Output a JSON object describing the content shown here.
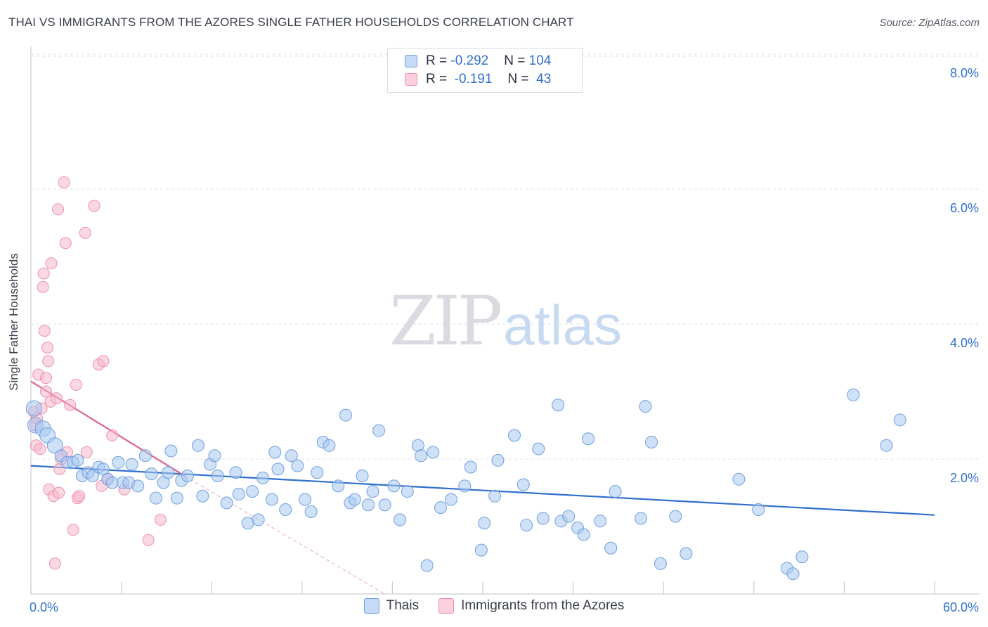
{
  "title": "THAI VS IMMIGRANTS FROM THE AZORES SINGLE FATHER HOUSEHOLDS CORRELATION CHART",
  "source": "Source: ZipAtlas.com",
  "watermark": {
    "zip": "ZIP",
    "atlas": "atlas"
  },
  "legend": {
    "thais": {
      "r_label": "R = ",
      "r_value": "-0.292",
      "n_label": "N = ",
      "n_value": "104"
    },
    "azores": {
      "r_label": "R = ",
      "r_value": " -0.191",
      "n_label": "N = ",
      "n_value": " 43"
    }
  },
  "bottom_legend": {
    "thais": "Thais",
    "azores": "Immigrants from the Azores"
  },
  "colors": {
    "thais_fill": "#a8c8f0",
    "thais_stroke": "#6f9fe0",
    "thais_line": "#2f6fce",
    "azores_fill": "#f6b8cb",
    "azores_stroke": "#ef8fad",
    "azores_line": "#e0608a",
    "axis_text": "#2f6fce",
    "grid": "#dfe2e8"
  },
  "chart_data": {
    "type": "scatter",
    "title": "THAI VS IMMIGRANTS FROM THE AZORES SINGLE FATHER HOUSEHOLDS CORRELATION CHART",
    "xlabel": "",
    "ylabel": "Single Father Households",
    "xlim": [
      0,
      60
    ],
    "ylim": [
      0,
      8.2
    ],
    "x_tick_labels": [
      "0.0%",
      "60.0%"
    ],
    "y_ticks": [
      2,
      4,
      6,
      8
    ],
    "y_tick_labels": [
      "2.0%",
      "4.0%",
      "6.0%",
      "8.0%"
    ],
    "grid": true,
    "series": [
      {
        "name": "Thais",
        "r": -0.292,
        "n": 104,
        "trend": {
          "x": [
            0,
            60
          ],
          "y": [
            1.9,
            1.17
          ]
        },
        "points": [
          [
            0.2,
            2.75
          ],
          [
            0.3,
            2.5
          ],
          [
            0.8,
            2.45
          ],
          [
            1.1,
            2.35
          ],
          [
            1.6,
            2.2
          ],
          [
            2.0,
            2.05
          ],
          [
            2.4,
            1.95
          ],
          [
            2.8,
            1.95
          ],
          [
            3.1,
            1.98
          ],
          [
            3.4,
            1.75
          ],
          [
            3.8,
            1.8
          ],
          [
            4.1,
            1.75
          ],
          [
            4.5,
            1.88
          ],
          [
            4.8,
            1.85
          ],
          [
            5.1,
            1.7
          ],
          [
            5.4,
            1.65
          ],
          [
            5.8,
            1.95
          ],
          [
            6.1,
            1.65
          ],
          [
            6.5,
            1.65
          ],
          [
            6.7,
            1.92
          ],
          [
            7.1,
            1.6
          ],
          [
            7.6,
            2.05
          ],
          [
            8.0,
            1.78
          ],
          [
            8.3,
            1.42
          ],
          [
            8.8,
            1.65
          ],
          [
            9.1,
            1.8
          ],
          [
            9.3,
            2.12
          ],
          [
            9.7,
            1.42
          ],
          [
            10.0,
            1.68
          ],
          [
            10.4,
            1.75
          ],
          [
            11.1,
            2.2
          ],
          [
            11.4,
            1.45
          ],
          [
            11.9,
            1.92
          ],
          [
            12.2,
            2.05
          ],
          [
            12.4,
            1.75
          ],
          [
            13.0,
            1.35
          ],
          [
            13.6,
            1.8
          ],
          [
            13.8,
            1.48
          ],
          [
            14.4,
            1.05
          ],
          [
            14.7,
            1.52
          ],
          [
            15.1,
            1.1
          ],
          [
            15.4,
            1.72
          ],
          [
            16.0,
            1.4
          ],
          [
            16.2,
            2.1
          ],
          [
            16.4,
            1.85
          ],
          [
            16.9,
            1.25
          ],
          [
            17.3,
            2.05
          ],
          [
            17.7,
            1.9
          ],
          [
            18.2,
            1.4
          ],
          [
            18.6,
            1.22
          ],
          [
            19.0,
            1.8
          ],
          [
            19.4,
            2.25
          ],
          [
            19.8,
            2.2
          ],
          [
            20.4,
            1.6
          ],
          [
            20.9,
            2.65
          ],
          [
            21.2,
            1.35
          ],
          [
            21.5,
            1.4
          ],
          [
            22.0,
            1.75
          ],
          [
            22.4,
            1.32
          ],
          [
            22.7,
            1.52
          ],
          [
            23.1,
            2.42
          ],
          [
            23.5,
            1.32
          ],
          [
            24.1,
            1.6
          ],
          [
            24.5,
            1.1
          ],
          [
            25.0,
            1.52
          ],
          [
            25.7,
            2.2
          ],
          [
            25.9,
            2.05
          ],
          [
            26.3,
            0.42
          ],
          [
            26.7,
            2.1
          ],
          [
            27.2,
            1.28
          ],
          [
            27.9,
            1.4
          ],
          [
            28.8,
            1.6
          ],
          [
            29.2,
            1.88
          ],
          [
            29.9,
            0.65
          ],
          [
            30.1,
            1.05
          ],
          [
            30.8,
            1.45
          ],
          [
            31.0,
            1.98
          ],
          [
            32.1,
            2.35
          ],
          [
            32.7,
            1.62
          ],
          [
            32.9,
            1.02
          ],
          [
            33.7,
            2.15
          ],
          [
            34.0,
            1.12
          ],
          [
            35.0,
            2.8
          ],
          [
            35.2,
            1.08
          ],
          [
            35.7,
            1.15
          ],
          [
            36.3,
            0.98
          ],
          [
            36.7,
            0.88
          ],
          [
            37.0,
            2.3
          ],
          [
            37.8,
            1.08
          ],
          [
            38.5,
            0.68
          ],
          [
            38.8,
            1.52
          ],
          [
            40.5,
            1.12
          ],
          [
            40.8,
            2.78
          ],
          [
            41.2,
            2.25
          ],
          [
            41.8,
            0.45
          ],
          [
            42.8,
            1.15
          ],
          [
            43.5,
            0.6
          ],
          [
            47.0,
            1.7
          ],
          [
            48.3,
            1.25
          ],
          [
            50.2,
            0.38
          ],
          [
            50.6,
            0.3
          ],
          [
            51.2,
            0.55
          ],
          [
            54.6,
            2.95
          ],
          [
            56.8,
            2.2
          ],
          [
            57.7,
            2.58
          ]
        ]
      },
      {
        "name": "Immigrants from the Azores",
        "r": -0.191,
        "n": 43,
        "trend": {
          "x": [
            0,
            10.2
          ],
          "y": [
            3.15,
            1.75
          ]
        },
        "trend_extension": {
          "x": [
            10.2,
            23.5
          ],
          "y": [
            1.75,
            0.0
          ]
        },
        "points": [
          [
            0.2,
            2.7
          ],
          [
            0.3,
            2.5
          ],
          [
            0.35,
            2.2
          ],
          [
            0.4,
            2.6
          ],
          [
            0.5,
            3.25
          ],
          [
            0.6,
            2.15
          ],
          [
            0.7,
            2.75
          ],
          [
            0.8,
            4.55
          ],
          [
            0.85,
            4.75
          ],
          [
            0.9,
            3.9
          ],
          [
            1.0,
            3.0
          ],
          [
            1.1,
            3.65
          ],
          [
            1.15,
            3.45
          ],
          [
            1.2,
            1.55
          ],
          [
            1.3,
            2.85
          ],
          [
            1.35,
            4.9
          ],
          [
            1.5,
            1.45
          ],
          [
            1.6,
            0.45
          ],
          [
            1.7,
            2.9
          ],
          [
            1.8,
            5.7
          ],
          [
            1.85,
            1.5
          ],
          [
            1.9,
            1.85
          ],
          [
            2.0,
            2.0
          ],
          [
            2.2,
            6.1
          ],
          [
            2.3,
            5.2
          ],
          [
            2.4,
            2.1
          ],
          [
            2.6,
            2.8
          ],
          [
            2.8,
            0.95
          ],
          [
            3.0,
            3.1
          ],
          [
            3.1,
            1.42
          ],
          [
            3.2,
            1.45
          ],
          [
            3.6,
            5.35
          ],
          [
            3.7,
            2.1
          ],
          [
            4.2,
            5.75
          ],
          [
            4.5,
            3.4
          ],
          [
            4.8,
            3.45
          ],
          [
            4.7,
            1.6
          ],
          [
            5.1,
            1.7
          ],
          [
            5.4,
            2.35
          ],
          [
            6.2,
            1.55
          ],
          [
            7.8,
            0.8
          ],
          [
            8.6,
            1.1
          ],
          [
            1.0,
            3.2
          ]
        ]
      }
    ]
  }
}
